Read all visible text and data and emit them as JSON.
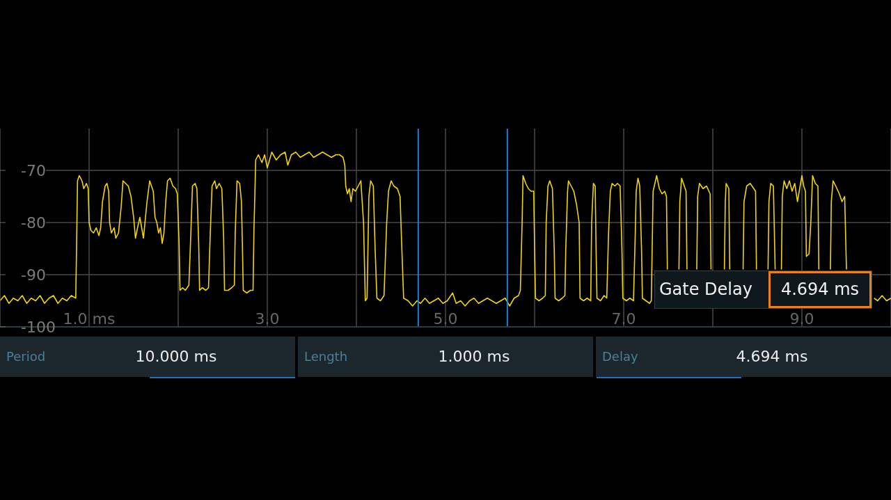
{
  "chart_data": {
    "type": "line",
    "color": "#f2d40c",
    "x": [
      0,
      0.05,
      0.1,
      0.15,
      0.2,
      0.25,
      0.3,
      0.35,
      0.4,
      0.45,
      0.5,
      0.55,
      0.6,
      0.65,
      0.7,
      0.75,
      0.8,
      0.85,
      0.86,
      0.87,
      0.89,
      0.92,
      0.94,
      0.97,
      0.99,
      1.0,
      1.02,
      1.05,
      1.08,
      1.11,
      1.13,
      1.15,
      1.18,
      1.2,
      1.22,
      1.23,
      1.25,
      1.28,
      1.3,
      1.33,
      1.36,
      1.38,
      1.41,
      1.44,
      1.47,
      1.5,
      1.52,
      1.55,
      1.57,
      1.59,
      1.61,
      1.65,
      1.68,
      1.7,
      1.72,
      1.74,
      1.76,
      1.78,
      1.8,
      1.82,
      1.84,
      1.86,
      1.88,
      1.91,
      1.94,
      1.97,
      1.99,
      2.01,
      2.02,
      2.05,
      2.08,
      2.12,
      2.14,
      2.16,
      2.19,
      2.21,
      2.23,
      2.24,
      2.27,
      2.31,
      2.34,
      2.36,
      2.38,
      2.41,
      2.43,
      2.46,
      2.49,
      2.51,
      2.52,
      2.56,
      2.6,
      2.63,
      2.64,
      2.66,
      2.69,
      2.71,
      2.72,
      2.73,
      2.77,
      2.81,
      2.84,
      2.85,
      2.87,
      2.9,
      2.94,
      2.97,
      3.0,
      3.05,
      3.1,
      3.15,
      3.2,
      3.23,
      3.27,
      3.32,
      3.37,
      3.42,
      3.47,
      3.52,
      3.57,
      3.62,
      3.67,
      3.72,
      3.77,
      3.81,
      3.85,
      3.87,
      3.88,
      3.9,
      3.92,
      3.94,
      3.96,
      3.99,
      4.02,
      4.05,
      4.08,
      4.1,
      4.12,
      4.14,
      4.16,
      4.19,
      4.21,
      4.23,
      4.27,
      4.31,
      4.34,
      4.36,
      4.39,
      4.42,
      4.46,
      4.49,
      4.51,
      4.53,
      4.58,
      4.63,
      4.68,
      4.72,
      4.77,
      4.82,
      4.87,
      4.92,
      4.97,
      5.02,
      5.08,
      5.12,
      5.17,
      5.22,
      5.27,
      5.32,
      5.37,
      5.42,
      5.47,
      5.52,
      5.57,
      5.62,
      5.67,
      5.72,
      5.77,
      5.82,
      5.84,
      5.86,
      5.87,
      5.9,
      5.93,
      5.96,
      5.99,
      6.0,
      6.01,
      6.05,
      6.09,
      6.12,
      6.13,
      6.15,
      6.17,
      6.2,
      6.22,
      6.23,
      6.27,
      6.31,
      6.34,
      6.35,
      6.37,
      6.38,
      6.41,
      6.44,
      6.47,
      6.5,
      6.51,
      6.55,
      6.59,
      6.63,
      6.64,
      6.66,
      6.68,
      6.69,
      6.7,
      6.74,
      6.78,
      6.81,
      6.83,
      6.85,
      6.87,
      6.9,
      6.93,
      6.96,
      6.98,
      6.99,
      7.03,
      7.07,
      7.11,
      7.13,
      7.14,
      7.16,
      7.18,
      7.2,
      7.21,
      7.25,
      7.29,
      7.31,
      7.33,
      7.37,
      7.4,
      7.43,
      7.46,
      7.48,
      7.49,
      7.55,
      7.62,
      7.63,
      7.65,
      7.68,
      7.7,
      7.71,
      7.77,
      7.82,
      7.83,
      7.85,
      7.89,
      7.93,
      7.97,
      7.98,
      8.05,
      8.13,
      8.14,
      8.15,
      8.18,
      8.19,
      8.27,
      8.34,
      8.35,
      8.38,
      8.42,
      8.46,
      8.48,
      8.49,
      8.56,
      8.62,
      8.63,
      8.65,
      8.68,
      8.7,
      8.74,
      8.77,
      8.78,
      8.8,
      8.83,
      8.86,
      8.89,
      8.92,
      8.95,
      8.98,
      9.0,
      9.02,
      9.04,
      9.05,
      9.08,
      9.1,
      9.12,
      9.15,
      9.18,
      9.19,
      9.26,
      9.32,
      9.33,
      9.35,
      9.38,
      9.42,
      9.45,
      9.48,
      9.5,
      9.65,
      9.81,
      9.85,
      9.9,
      9.95,
      10
    ],
    "values": [
      -95,
      -94,
      -95.5,
      -94.5,
      -95,
      -94,
      -95.5,
      -94.5,
      -95,
      -94,
      -95.5,
      -94.5,
      -94,
      -95.5,
      -94.5,
      -95,
      -94,
      -94.5,
      -84,
      -72,
      -71,
      -72,
      -73.5,
      -72.5,
      -73.5,
      -80,
      -81.5,
      -82,
      -81,
      -82.5,
      -81,
      -76,
      -73,
      -72.5,
      -74,
      -80,
      -82,
      -81,
      -83,
      -82,
      -77,
      -72,
      -72.5,
      -73,
      -75,
      -79,
      -83,
      -80.5,
      -79,
      -81,
      -83,
      -76,
      -72,
      -73,
      -74,
      -79,
      -80,
      -82,
      -81,
      -84,
      -82,
      -76,
      -72,
      -71.5,
      -73,
      -73.5,
      -74.5,
      -84,
      -93,
      -92.5,
      -93,
      -92,
      -83,
      -73,
      -72.5,
      -73.5,
      -84,
      -93,
      -92.5,
      -93,
      -92.5,
      -82,
      -73,
      -72,
      -73.5,
      -72.5,
      -73.5,
      -83,
      -93,
      -93,
      -92.5,
      -92,
      -82,
      -72,
      -72.5,
      -76,
      -84,
      -93,
      -93.5,
      -93,
      -93,
      -81.5,
      -68,
      -67,
      -68.5,
      -67,
      -69.5,
      -66.5,
      -68,
      -67,
      -66.5,
      -69,
      -67,
      -66.5,
      -67.5,
      -67,
      -66.5,
      -67.5,
      -67,
      -66.5,
      -67,
      -67.5,
      -67,
      -67,
      -67.5,
      -69,
      -73,
      -74.5,
      -73.5,
      -76,
      -73.5,
      -74,
      -73,
      -72,
      -80,
      -95,
      -94.5,
      -75,
      -72,
      -73,
      -85,
      -94.5,
      -95,
      -94,
      -80,
      -74,
      -72,
      -73,
      -73.5,
      -75,
      -85,
      -94.5,
      -95,
      -96,
      -95,
      -95.5,
      -94.5,
      -95.5,
      -95,
      -94.5,
      -95.5,
      -95,
      -93.5,
      -95.5,
      -95,
      -96,
      -95,
      -94.5,
      -95.5,
      -95,
      -94.5,
      -95,
      -95.5,
      -95,
      -94.5,
      -96,
      -94.5,
      -94,
      -93,
      -80,
      -71,
      -72.5,
      -73.5,
      -74,
      -74,
      -85,
      -94.5,
      -95,
      -94.5,
      -94,
      -80,
      -73,
      -72,
      -73.5,
      -85,
      -94.5,
      -95,
      -94.5,
      -94,
      -85,
      -74,
      -72,
      -73,
      -74,
      -76.5,
      -80,
      -94.5,
      -95,
      -94.5,
      -95,
      -80,
      -72.5,
      -73,
      -85,
      -94.5,
      -95,
      -94,
      -94.5,
      -82,
      -74,
      -72.5,
      -73,
      -72.5,
      -73,
      -85,
      -94.5,
      -95,
      -94.5,
      -95,
      -82,
      -74,
      -71.5,
      -73,
      -85,
      -94.5,
      -95,
      -95.5,
      -95,
      -74,
      -71,
      -73.5,
      -74.5,
      -74,
      -75,
      -89,
      null,
      -89,
      -76,
      -71.5,
      -73,
      -74,
      -89,
      null,
      -89,
      -75,
      -72.5,
      -73.5,
      -73,
      -74.5,
      -89,
      null,
      -89,
      -76,
      -72.5,
      -73.5,
      -89,
      null,
      -89,
      -76,
      -73,
      -72.5,
      -73.5,
      -74,
      -89,
      null,
      -89,
      -76,
      -72.5,
      -73,
      -89,
      null,
      -89,
      -75,
      -72,
      -73.5,
      -72,
      -74,
      -72.5,
      -76,
      -73,
      -71,
      -73,
      -74,
      -86.5,
      -86,
      -80,
      -71,
      -72.5,
      -73,
      -89,
      null,
      -89,
      -76,
      -72,
      -73,
      -74.5,
      -76,
      -75,
      -89,
      null,
      -94.5,
      -95,
      -94,
      -95,
      -94.5
    ],
    "xlim": [
      0,
      10
    ],
    "xticks": [
      {
        "value": 1,
        "label": "1.0 ms"
      },
      {
        "value": 2,
        "label": null
      },
      {
        "value": 3,
        "label": "3.0"
      },
      {
        "value": 4,
        "label": null
      },
      {
        "value": 5,
        "label": "5.0"
      },
      {
        "value": 6,
        "label": null
      },
      {
        "value": 7,
        "label": "7.0"
      },
      {
        "value": 8,
        "label": null
      },
      {
        "value": 9,
        "label": "9.0"
      }
    ],
    "ylim": [
      -100,
      -62
    ],
    "yticks": [
      -100,
      -90,
      -80,
      -70
    ],
    "grid": true,
    "ref_lines": [
      {
        "axis": "x",
        "value": 4.694,
        "color": "#1b7fd6"
      },
      {
        "axis": "x",
        "value": 5.694,
        "color": "#1b7fd6"
      }
    ],
    "annotations": [
      "Gate Delay",
      "4.694 ms",
      "Period",
      "10.000 ms",
      "Length",
      "1.000 ms",
      "Delay",
      "4.694 ms"
    ]
  }
}
